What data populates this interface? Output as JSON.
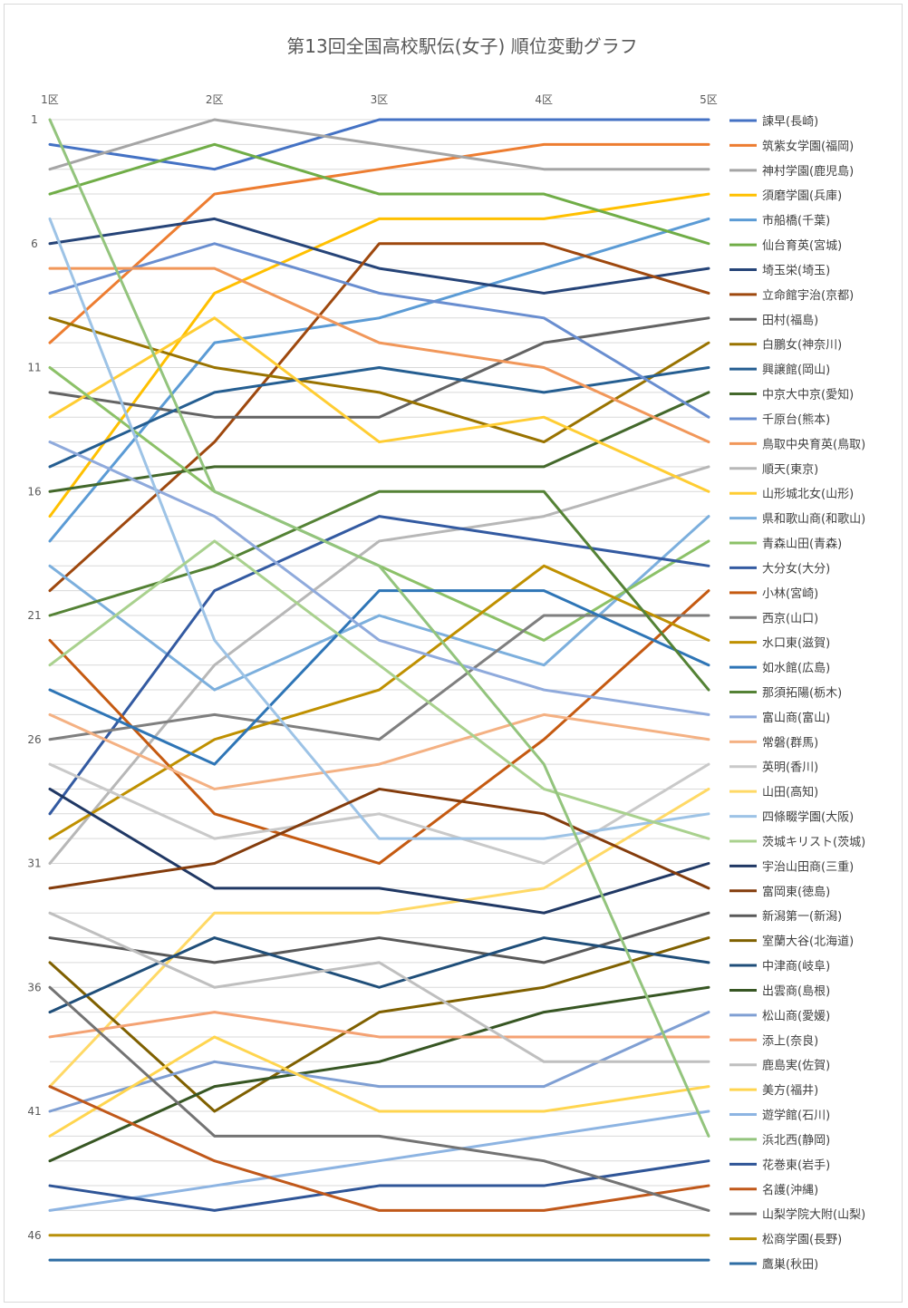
{
  "chart_data": {
    "type": "line",
    "title": "第13回全国高校駅伝(女子) 順位変動グラフ",
    "categories": [
      "1区",
      "2区",
      "3区",
      "4区",
      "5区"
    ],
    "y_tick_labels": [
      "1",
      "6",
      "11",
      "16",
      "21",
      "26",
      "31",
      "36",
      "41",
      "46"
    ],
    "ylim": [
      1,
      47
    ],
    "y_reversed": true,
    "grid": true,
    "legend_position": "right",
    "series": [
      {
        "name": "諫早(長崎)",
        "color": "#4472C4",
        "values": [
          2,
          3,
          1,
          1,
          1
        ]
      },
      {
        "name": "筑紫女学園(福岡)",
        "color": "#ED7D31",
        "values": [
          10,
          4,
          3,
          2,
          2
        ]
      },
      {
        "name": "神村学園(鹿児島)",
        "color": "#A5A5A5",
        "values": [
          3,
          1,
          2,
          3,
          3
        ]
      },
      {
        "name": "須磨学園(兵庫)",
        "color": "#FFC000",
        "values": [
          17,
          8,
          5,
          5,
          4
        ]
      },
      {
        "name": "市船橋(千葉)",
        "color": "#5B9BD5",
        "values": [
          18,
          10,
          9,
          7,
          5
        ]
      },
      {
        "name": "仙台育英(宮城)",
        "color": "#70AD47",
        "values": [
          4,
          2,
          4,
          4,
          6
        ]
      },
      {
        "name": "埼玉栄(埼玉)",
        "color": "#264478",
        "values": [
          6,
          5,
          7,
          8,
          7
        ]
      },
      {
        "name": "立命館宇治(京都)",
        "color": "#9E480E",
        "values": [
          20,
          14,
          6,
          6,
          8
        ]
      },
      {
        "name": "田村(福島)",
        "color": "#636363",
        "values": [
          12,
          13,
          13,
          10,
          9
        ]
      },
      {
        "name": "白鵬女(神奈川)",
        "color": "#997300",
        "values": [
          9,
          11,
          12,
          14,
          10
        ]
      },
      {
        "name": "興譲館(岡山)",
        "color": "#255E91",
        "values": [
          15,
          12,
          11,
          12,
          11
        ]
      },
      {
        "name": "中京大中京(愛知)",
        "color": "#43682B",
        "values": [
          16,
          15,
          15,
          15,
          12
        ]
      },
      {
        "name": "千原台(熊本)",
        "color": "#698ED0",
        "values": [
          8,
          6,
          8,
          9,
          13
        ]
      },
      {
        "name": "鳥取中央育英(鳥取)",
        "color": "#F1975A",
        "values": [
          7,
          7,
          10,
          11,
          14
        ]
      },
      {
        "name": "順天(東京)",
        "color": "#B7B7B7",
        "values": [
          31,
          23,
          18,
          17,
          15
        ]
      },
      {
        "name": "山形城北女(山形)",
        "color": "#FFCD33",
        "values": [
          13,
          9,
          14,
          13,
          16
        ]
      },
      {
        "name": "県和歌山商(和歌山)",
        "color": "#7CAFDD",
        "values": [
          19,
          24,
          21,
          23,
          17
        ]
      },
      {
        "name": "青森山田(青森)",
        "color": "#8CC168",
        "values": [
          11,
          16,
          19,
          22,
          18
        ]
      },
      {
        "name": "大分女(大分)",
        "color": "#335AA1",
        "values": [
          29,
          20,
          17,
          18,
          19
        ]
      },
      {
        "name": "小林(宮崎)",
        "color": "#C55A11",
        "values": [
          22,
          29,
          31,
          26,
          20
        ]
      },
      {
        "name": "西京(山口)",
        "color": "#7F7F7F",
        "values": [
          26,
          25,
          26,
          21,
          21
        ]
      },
      {
        "name": "水口東(滋賀)",
        "color": "#BF9000",
        "values": [
          30,
          26,
          24,
          19,
          22
        ]
      },
      {
        "name": "如水館(広島)",
        "color": "#2E75B6",
        "values": [
          24,
          27,
          20,
          20,
          23
        ]
      },
      {
        "name": "那須拓陽(栃木)",
        "color": "#548235",
        "values": [
          21,
          19,
          16,
          16,
          24
        ]
      },
      {
        "name": "富山商(富山)",
        "color": "#8FAADC",
        "values": [
          14,
          17,
          22,
          24,
          25
        ]
      },
      {
        "name": "常磐(群馬)",
        "color": "#F4B183",
        "values": [
          25,
          28,
          27,
          25,
          26
        ]
      },
      {
        "name": "英明(香川)",
        "color": "#C9C9C9",
        "values": [
          27,
          30,
          29,
          31,
          27
        ]
      },
      {
        "name": "山田(高知)",
        "color": "#FFD966",
        "values": [
          40,
          33,
          33,
          32,
          28
        ]
      },
      {
        "name": "四條畷学園(大阪)",
        "color": "#9DC3E6",
        "values": [
          5,
          22,
          30,
          30,
          29
        ]
      },
      {
        "name": "茨城キリスト(茨城)",
        "color": "#A9D18E",
        "values": [
          23,
          18,
          23,
          28,
          30
        ]
      },
      {
        "name": "宇治山田商(三重)",
        "color": "#203864",
        "values": [
          28,
          32,
          32,
          33,
          31
        ]
      },
      {
        "name": "富岡東(徳島)",
        "color": "#843C0C",
        "values": [
          32,
          31,
          28,
          29,
          32
        ]
      },
      {
        "name": "新潟第一(新潟)",
        "color": "#595959",
        "values": [
          34,
          35,
          34,
          35,
          33
        ]
      },
      {
        "name": "室蘭大谷(北海道)",
        "color": "#7F6000",
        "values": [
          35,
          41,
          37,
          36,
          34
        ]
      },
      {
        "name": "中津商(岐阜)",
        "color": "#1F4E79",
        "values": [
          37,
          34,
          36,
          34,
          35
        ]
      },
      {
        "name": "出雲商(島根)",
        "color": "#375623",
        "values": [
          43,
          40,
          39,
          37,
          36
        ]
      },
      {
        "name": "松山商(愛媛)",
        "color": "#7F9FD3",
        "values": [
          41,
          39,
          40,
          40,
          37
        ]
      },
      {
        "name": "添上(奈良)",
        "color": "#F4A273",
        "values": [
          38,
          37,
          38,
          38,
          38
        ]
      },
      {
        "name": "鹿島実(佐賀)",
        "color": "#BFBFBF",
        "values": [
          33,
          36,
          35,
          39,
          39
        ]
      },
      {
        "name": "美方(福井)",
        "color": "#FFD54F",
        "values": [
          42,
          38,
          41,
          41,
          40
        ]
      },
      {
        "name": "遊学館(石川)",
        "color": "#8DB4E2",
        "values": [
          45,
          44,
          43,
          42,
          41
        ]
      },
      {
        "name": "浜北西(静岡)",
        "color": "#93C47D",
        "values": [
          1,
          16,
          19,
          27,
          42
        ]
      },
      {
        "name": "花巻東(岩手)",
        "color": "#2F5597",
        "values": [
          44,
          45,
          44,
          44,
          43
        ]
      },
      {
        "name": "名護(沖縄)",
        "color": "#C0581A",
        "values": [
          40,
          43,
          45,
          45,
          44
        ]
      },
      {
        "name": "山梨学院大附(山梨)",
        "color": "#737373",
        "values": [
          36,
          42,
          42,
          43,
          45
        ]
      },
      {
        "name": "松商学園(長野)",
        "color": "#B8900A",
        "values": [
          46,
          46,
          46,
          46,
          46
        ]
      },
      {
        "name": "鷹巣(秋田)",
        "color": "#2E6DA4",
        "values": [
          47,
          47,
          47,
          47,
          47
        ]
      }
    ]
  }
}
